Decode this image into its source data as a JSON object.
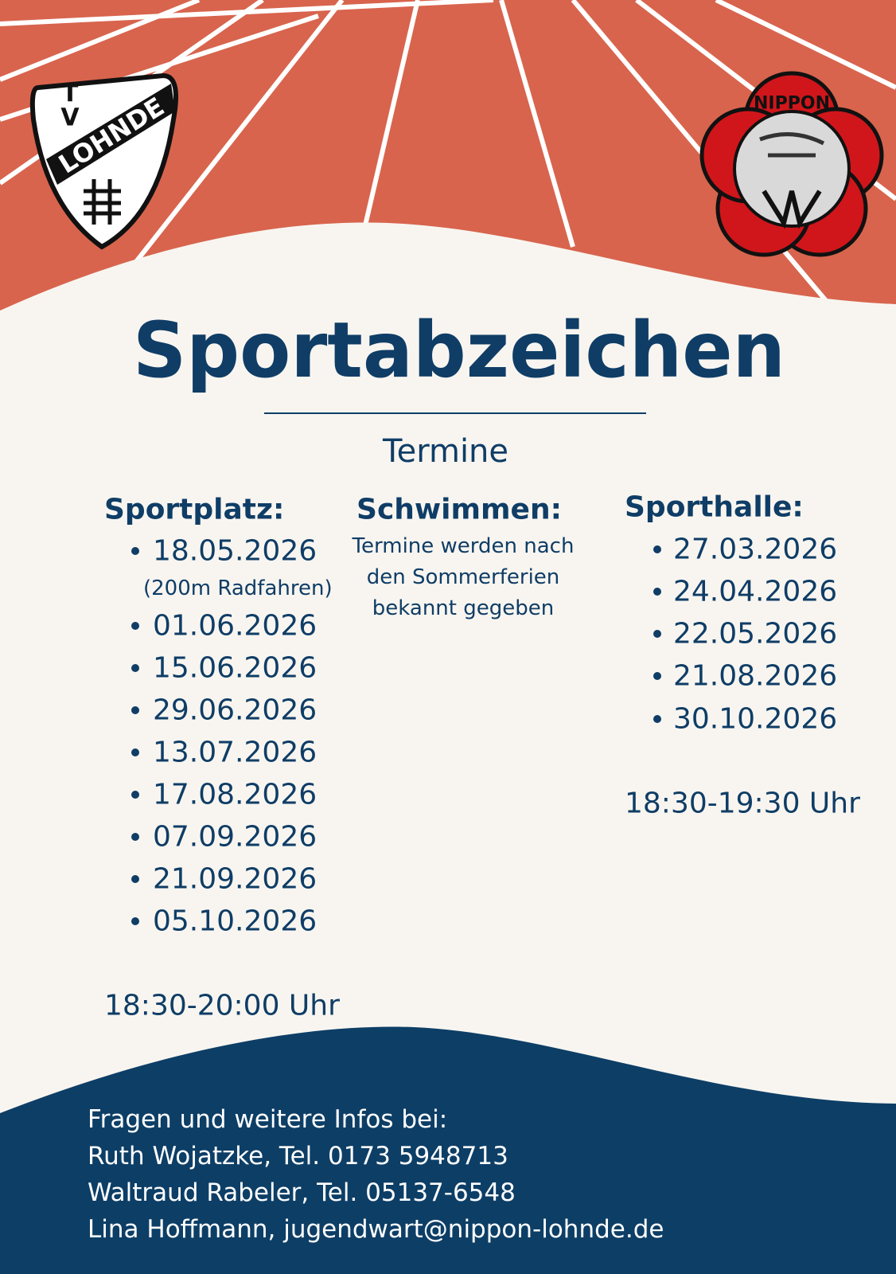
{
  "logos": {
    "left": {
      "letters": [
        "T",
        "V"
      ],
      "name": "LOHNDE"
    },
    "right": {
      "name": "NIPPON"
    }
  },
  "title": "Sportabzeichen",
  "subtitle": "Termine",
  "columns": [
    {
      "heading": "Sportplatz:",
      "dates": [
        "18.05.2026",
        "01.06.2026",
        "15.06.2026",
        "29.06.2026",
        "13.07.2026",
        "17.08.2026",
        "07.09.2026",
        "21.09.2026",
        "05.10.2026"
      ],
      "note": "(200m Radfahren)",
      "time": "18:30-20:00 Uhr"
    },
    {
      "heading": "Schwimmen:",
      "lines": [
        "Termine werden nach",
        "den Sommerferien",
        "bekannt gegeben"
      ]
    },
    {
      "heading": "Sporthalle:",
      "dates": [
        "27.03.2026",
        "24.04.2026",
        "22.05.2026",
        "21.08.2026",
        "30.10.2026"
      ],
      "time": "18:30-19:30 Uhr"
    }
  ],
  "footer": [
    "Fragen und weitere Infos bei:",
    "Ruth Wojatzke, Tel. 0173 5948713",
    "Waltraud Rabeler, Tel. 05137-6548",
    "Lina Hoffmann, jugendwart@nippon-lohnde.de"
  ]
}
